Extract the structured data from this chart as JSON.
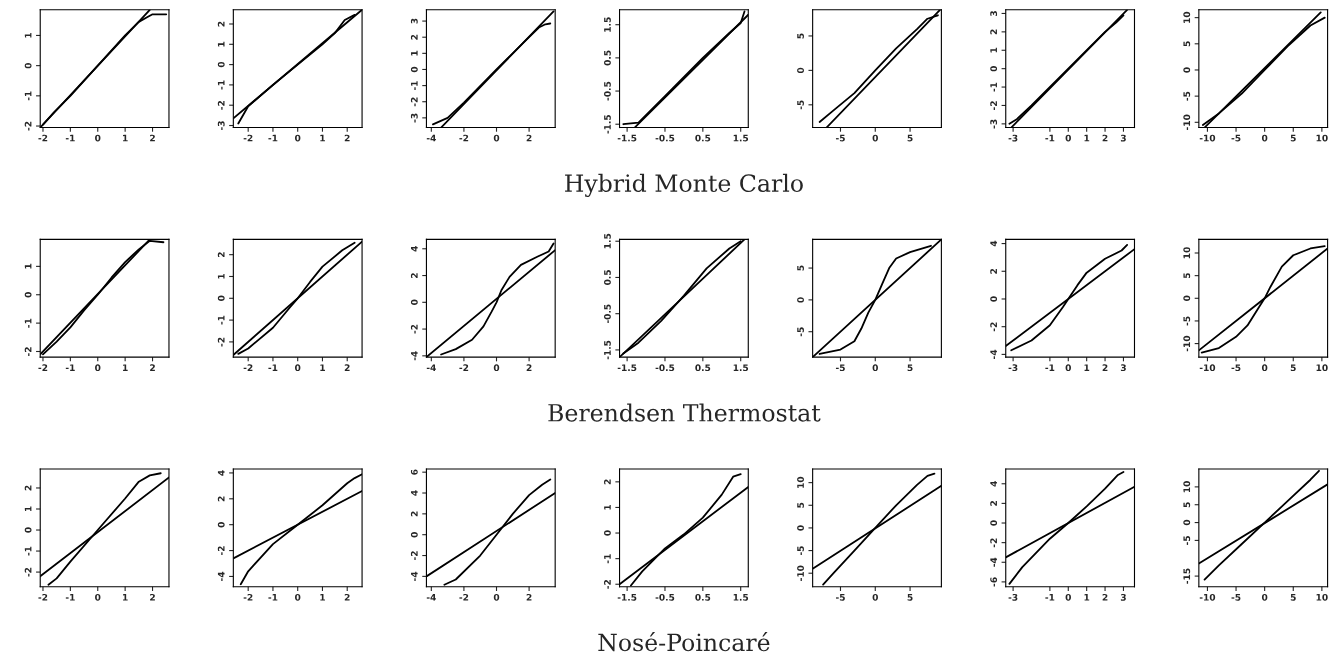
{
  "chart_data": [
    {
      "type": "line",
      "xlim": [
        -2.1,
        2.6
      ],
      "ylim": [
        -2.05,
        1.85
      ],
      "xticks": [
        -2,
        -1,
        0,
        1,
        2
      ],
      "yticks": [
        -2,
        -1,
        0,
        1
      ],
      "series": [
        {
          "color": "#000000",
          "x": [
            -2.0,
            -1.6,
            -1,
            0,
            1,
            1.5,
            1.8,
            2.0,
            2.5
          ],
          "values": [
            -1.95,
            -1.55,
            -1.0,
            0,
            1.0,
            1.45,
            1.6,
            1.7,
            1.7
          ]
        },
        {
          "color": "#000000",
          "x": [
            -2.1,
            1.9
          ],
          "values": [
            -2.05,
            1.85
          ]
        }
      ]
    },
    {
      "type": "line",
      "xlim": [
        -2.6,
        2.6
      ],
      "ylim": [
        -3.1,
        2.7
      ],
      "xticks": [
        -2,
        -1,
        0,
        1,
        2
      ],
      "yticks": [
        -3,
        -2,
        -1,
        0,
        1,
        2
      ],
      "series": [
        {
          "color": "#000000",
          "x": [
            -2.4,
            -2,
            -1,
            0,
            1,
            1.5,
            1.9,
            2.3
          ],
          "values": [
            -2.9,
            -2.05,
            -1.0,
            0,
            1.0,
            1.55,
            2.2,
            2.45
          ]
        },
        {
          "color": "#000000",
          "x": [
            -2.6,
            2.6
          ],
          "values": [
            -2.65,
            2.7
          ]
        }
      ]
    },
    {
      "type": "line",
      "xlim": [
        -4.3,
        3.6
      ],
      "ylim": [
        -3.6,
        3.7
      ],
      "xticks": [
        -4,
        -2,
        0,
        2
      ],
      "yticks": [
        -3,
        -2,
        -1,
        0,
        1,
        2,
        3
      ],
      "series": [
        {
          "color": "#000000",
          "x": [
            -3.9,
            -3,
            -2,
            0,
            2,
            2.6,
            3.0,
            3.3
          ],
          "values": [
            -3.4,
            -3.0,
            -2.05,
            0,
            2.0,
            2.6,
            2.8,
            2.85
          ]
        },
        {
          "color": "#000000",
          "x": [
            -3.4,
            3.5
          ],
          "values": [
            -3.6,
            3.6
          ]
        }
      ]
    },
    {
      "type": "line",
      "xlim": [
        -1.7,
        1.7
      ],
      "ylim": [
        -1.6,
        1.95
      ],
      "xticks": [
        -1.5,
        -0.5,
        0.5,
        1.5
      ],
      "yticks": [
        -1.5,
        -0.5,
        0.5,
        1.5
      ],
      "xlabel": "Hybrid Monte Carlo",
      "series": [
        {
          "color": "#000000",
          "x": [
            -1.6,
            -1.2,
            -0.5,
            0.5,
            1.2,
            1.5,
            1.6
          ],
          "values": [
            -1.5,
            -1.45,
            -0.65,
            0.5,
            1.25,
            1.55,
            1.9
          ]
        },
        {
          "color": "#000000",
          "x": [
            -1.3,
            1.7
          ],
          "values": [
            -1.6,
            1.8
          ]
        }
      ]
    },
    {
      "type": "line",
      "xlim": [
        -9,
        9.5
      ],
      "ylim": [
        -8.3,
        8.8
      ],
      "xticks": [
        -5,
        0,
        5
      ],
      "yticks": [
        -5,
        0,
        5
      ],
      "series": [
        {
          "color": "#000000",
          "x": [
            -8,
            -6,
            -3,
            0,
            3,
            6,
            7.5,
            9
          ],
          "values": [
            -7.5,
            -5.8,
            -3.3,
            0,
            3.2,
            6,
            7.5,
            8.0
          ]
        },
        {
          "color": "#000000",
          "x": [
            -7,
            9.3
          ],
          "values": [
            -8.3,
            8.8
          ]
        }
      ]
    },
    {
      "type": "line",
      "xlim": [
        -3.4,
        3.6
      ],
      "ylim": [
        -3.2,
        3.2
      ],
      "xticks": [
        -3,
        -1,
        0,
        1,
        2,
        3
      ],
      "yticks": [
        -3,
        -2,
        -1,
        0,
        1,
        2,
        3
      ],
      "series": [
        {
          "color": "#000000",
          "x": [
            -3.2,
            -2.8,
            -2,
            0,
            2,
            2.6,
            3.0
          ],
          "values": [
            -3.0,
            -2.75,
            -2.0,
            0,
            2.0,
            2.5,
            2.9
          ]
        },
        {
          "color": "#000000",
          "x": [
            -3.1,
            3.2
          ],
          "values": [
            -3.2,
            3.2
          ]
        }
      ]
    },
    {
      "type": "line",
      "xlim": [
        -11.5,
        11
      ],
      "ylim": [
        -11,
        11.5
      ],
      "xticks": [
        -10,
        -5,
        0,
        5,
        10
      ],
      "yticks": [
        -10,
        -5,
        0,
        5,
        10
      ],
      "series": [
        {
          "color": "#000000",
          "x": [
            -10.8,
            -8,
            -4,
            0,
            4,
            8,
            10.5
          ],
          "values": [
            -10.5,
            -8.3,
            -4.5,
            0,
            4.5,
            8.5,
            10
          ]
        },
        {
          "color": "#000000",
          "x": [
            -10.5,
            9.8
          ],
          "values": [
            -11,
            11
          ]
        }
      ]
    },
    {
      "type": "line",
      "xlim": [
        -2.1,
        2.6
      ],
      "ylim": [
        -2.2,
        1.95
      ],
      "xticks": [
        -2,
        -1,
        0,
        1,
        2
      ],
      "yticks": [
        -2,
        -1,
        0,
        1
      ],
      "series": [
        {
          "color": "#000000",
          "x": [
            -2.0,
            -1.5,
            -1,
            -0.5,
            0,
            0.5,
            1,
            1.5,
            1.9,
            2.4
          ],
          "values": [
            -2.1,
            -1.65,
            -1.15,
            -0.55,
            0,
            0.6,
            1.15,
            1.6,
            1.9,
            1.85
          ]
        },
        {
          "color": "#000000",
          "x": [
            -2.1,
            1.9
          ],
          "values": [
            -2.1,
            1.95
          ]
        }
      ]
    },
    {
      "type": "line",
      "xlim": [
        -2.6,
        2.6
      ],
      "ylim": [
        -2.7,
        2.7
      ],
      "xticks": [
        -2,
        -1,
        0,
        1,
        2
      ],
      "yticks": [
        -2,
        -1,
        0,
        1,
        2
      ],
      "series": [
        {
          "color": "#000000",
          "x": [
            -2.4,
            -2,
            -1,
            -0.3,
            0,
            0.5,
            1,
            1.8,
            2.3
          ],
          "values": [
            -2.55,
            -2.3,
            -1.35,
            -0.4,
            0.0,
            0.75,
            1.45,
            2.2,
            2.55
          ]
        },
        {
          "color": "#000000",
          "x": [
            -2.6,
            2.6
          ],
          "values": [
            -2.6,
            2.6
          ]
        }
      ]
    },
    {
      "type": "line",
      "xlim": [
        -4.3,
        3.6
      ],
      "ylim": [
        -4.1,
        4.7
      ],
      "xticks": [
        -4,
        -2,
        0,
        2
      ],
      "yticks": [
        -4,
        -2,
        0,
        2,
        4
      ],
      "series": [
        {
          "color": "#000000",
          "x": [
            -3.4,
            -2.5,
            -1.5,
            -0.8,
            -0.3,
            0,
            0.3,
            0.8,
            1.5,
            2.5,
            3.2,
            3.5
          ],
          "values": [
            -3.9,
            -3.5,
            -2.8,
            -1.8,
            -0.7,
            0,
            0.9,
            1.9,
            2.8,
            3.4,
            3.8,
            4.4
          ]
        },
        {
          "color": "#000000",
          "x": [
            -4.3,
            3.6
          ],
          "values": [
            -4.1,
            3.9
          ]
        }
      ]
    },
    {
      "type": "line",
      "xlim": [
        -1.7,
        1.7
      ],
      "ylim": [
        -1.7,
        1.55
      ],
      "xticks": [
        -1.5,
        -0.5,
        0.5,
        1.5
      ],
      "yticks": [
        -1.5,
        -0.5,
        0.5,
        1.5
      ],
      "xlabel": "Berendsen Thermostat",
      "series": [
        {
          "color": "#000000",
          "x": [
            -1.6,
            -1.2,
            -0.6,
            0,
            0.6,
            1.2,
            1.5
          ],
          "values": [
            -1.6,
            -1.3,
            -0.7,
            0.0,
            0.75,
            1.3,
            1.5
          ]
        },
        {
          "color": "#000000",
          "x": [
            -1.7,
            1.6
          ],
          "values": [
            -1.7,
            1.55
          ]
        }
      ]
    },
    {
      "type": "line",
      "xlim": [
        -9,
        9.5
      ],
      "ylim": [
        -9,
        9.5
      ],
      "xticks": [
        -5,
        0,
        5
      ],
      "yticks": [
        -5,
        0,
        5
      ],
      "series": [
        {
          "color": "#000000",
          "x": [
            -8,
            -5,
            -3,
            -2,
            -1,
            0,
            1,
            2,
            3,
            5,
            8
          ],
          "values": [
            -8.5,
            -7.8,
            -6.5,
            -4.5,
            -2,
            0,
            2.5,
            5,
            6.5,
            7.5,
            8.5
          ]
        },
        {
          "color": "#000000",
          "x": [
            -9,
            9.5
          ],
          "values": [
            -9,
            9.5
          ]
        }
      ]
    },
    {
      "type": "line",
      "xlim": [
        -3.4,
        3.6
      ],
      "ylim": [
        -4.2,
        4.3
      ],
      "xticks": [
        -3,
        -1,
        0,
        1,
        2,
        3
      ],
      "yticks": [
        -4,
        -2,
        0,
        2,
        4
      ],
      "series": [
        {
          "color": "#000000",
          "x": [
            -3.1,
            -2,
            -1,
            -0.3,
            0,
            0.5,
            1,
            2,
            2.9,
            3.2
          ],
          "values": [
            -3.7,
            -3.0,
            -1.9,
            -0.6,
            0,
            1.0,
            1.9,
            2.9,
            3.5,
            3.9
          ]
        },
        {
          "color": "#000000",
          "x": [
            -3.4,
            3.6
          ],
          "values": [
            -3.4,
            3.6
          ]
        }
      ]
    },
    {
      "type": "line",
      "xlim": [
        -11.5,
        11
      ],
      "ylim": [
        -13,
        13
      ],
      "xticks": [
        -10,
        -5,
        0,
        5,
        10
      ],
      "yticks": [
        -10,
        -5,
        0,
        5,
        10
      ],
      "series": [
        {
          "color": "#000000",
          "x": [
            -11,
            -8,
            -5,
            -3,
            -1,
            0,
            1,
            3,
            5,
            8,
            10.5
          ],
          "values": [
            -12,
            -11,
            -8.5,
            -6,
            -2,
            0,
            2.5,
            7,
            9.5,
            11,
            11.5
          ]
        },
        {
          "color": "#000000",
          "x": [
            -11.5,
            11
          ],
          "values": [
            -11.5,
            11
          ]
        }
      ]
    },
    {
      "type": "line",
      "xlim": [
        -2.1,
        2.6
      ],
      "ylim": [
        -2.7,
        2.9
      ],
      "xticks": [
        -2,
        -1,
        0,
        1,
        2
      ],
      "yticks": [
        -2,
        -1,
        0,
        1,
        2
      ],
      "series": [
        {
          "color": "#000000",
          "x": [
            -1.8,
            -1.5,
            -1,
            0,
            1,
            1.5,
            1.9,
            2.3
          ],
          "values": [
            -2.6,
            -2.3,
            -1.5,
            0,
            1.5,
            2.3,
            2.6,
            2.7
          ]
        },
        {
          "color": "#000000",
          "x": [
            -2.1,
            2.6
          ],
          "values": [
            -2.2,
            2.5
          ]
        }
      ]
    },
    {
      "type": "line",
      "xlim": [
        -2.6,
        2.6
      ],
      "ylim": [
        -4.8,
        4.3
      ],
      "xticks": [
        -2,
        -1,
        0,
        1,
        2
      ],
      "yticks": [
        -4,
        -2,
        0,
        2,
        4
      ],
      "series": [
        {
          "color": "#000000",
          "x": [
            -2.3,
            -2,
            -1,
            0,
            1,
            2,
            2.3,
            2.6
          ],
          "values": [
            -4.6,
            -3.6,
            -1.5,
            0,
            1.5,
            3.2,
            3.6,
            3.9
          ]
        },
        {
          "color": "#000000",
          "x": [
            -2.6,
            2.6
          ],
          "values": [
            -2.6,
            2.6
          ]
        }
      ]
    },
    {
      "type": "line",
      "xlim": [
        -4.3,
        3.6
      ],
      "ylim": [
        -5,
        6.3
      ],
      "xticks": [
        -4,
        -2,
        0,
        2
      ],
      "yticks": [
        -4,
        -2,
        0,
        2,
        4,
        6
      ],
      "series": [
        {
          "color": "#000000",
          "x": [
            -3.2,
            -2.5,
            -1,
            0,
            1,
            2,
            2.8,
            3.3
          ],
          "values": [
            -4.8,
            -4.3,
            -2,
            0,
            2,
            3.8,
            4.8,
            5.3
          ]
        },
        {
          "color": "#000000",
          "x": [
            -4.3,
            3.6
          ],
          "values": [
            -4,
            4
          ]
        }
      ]
    },
    {
      "type": "line",
      "xlim": [
        -1.7,
        1.7
      ],
      "ylim": [
        -2.1,
        2.5
      ],
      "xticks": [
        -1.5,
        -0.5,
        0.5,
        1.5
      ],
      "yticks": [
        -2,
        -1,
        0,
        1,
        2
      ],
      "xlabel": "Nosé-Poincaré",
      "series": [
        {
          "color": "#000000",
          "x": [
            -1.4,
            -1.1,
            -0.5,
            0,
            0.5,
            1,
            1.3,
            1.5
          ],
          "values": [
            -2.05,
            -1.5,
            -0.6,
            -0.05,
            0.6,
            1.5,
            2.2,
            2.3
          ]
        },
        {
          "color": "#000000",
          "x": [
            -1.7,
            1.7
          ],
          "values": [
            -2,
            1.8
          ]
        }
      ]
    },
    {
      "type": "line",
      "xlim": [
        -9,
        9.5
      ],
      "ylim": [
        -13,
        13
      ],
      "xticks": [
        -5,
        0,
        5
      ],
      "yticks": [
        -10,
        -5,
        0,
        5,
        10
      ],
      "series": [
        {
          "color": "#000000",
          "x": [
            -7.5,
            -6,
            -3,
            0,
            3,
            6,
            7.5,
            8.5
          ],
          "values": [
            -12.5,
            -10,
            -5,
            0,
            5,
            9.5,
            11.5,
            12
          ]
        },
        {
          "color": "#000000",
          "x": [
            -9,
            9.5
          ],
          "values": [
            -9,
            9.3
          ]
        }
      ]
    },
    {
      "type": "line",
      "xlim": [
        -3.4,
        3.6
      ],
      "ylim": [
        -6.5,
        5.5
      ],
      "xticks": [
        -3,
        -1,
        0,
        1,
        2,
        3
      ],
      "yticks": [
        -6,
        -4,
        -2,
        0,
        2,
        4
      ],
      "series": [
        {
          "color": "#000000",
          "x": [
            -3.2,
            -2.5,
            -1,
            0,
            1,
            2,
            2.7,
            3.0
          ],
          "values": [
            -6.2,
            -4.5,
            -1.6,
            0,
            1.7,
            3.5,
            4.9,
            5.2
          ]
        },
        {
          "color": "#000000",
          "x": [
            -3.4,
            3.6
          ],
          "values": [
            -3.5,
            3.7
          ]
        }
      ]
    },
    {
      "type": "line",
      "xlim": [
        -11.5,
        11
      ],
      "ylim": [
        -18,
        15
      ],
      "xticks": [
        -10,
        -5,
        0,
        5,
        10
      ],
      "yticks": [
        -15,
        -5,
        0,
        5,
        10
      ],
      "series": [
        {
          "color": "#000000",
          "x": [
            -10.5,
            -8,
            -4,
            0,
            4,
            8,
            9.5
          ],
          "values": [
            -16,
            -12,
            -6,
            0,
            6,
            12,
            14.5
          ]
        },
        {
          "color": "#000000",
          "x": [
            -11.5,
            11
          ],
          "values": [
            -11.5,
            10.7
          ]
        }
      ]
    }
  ]
}
